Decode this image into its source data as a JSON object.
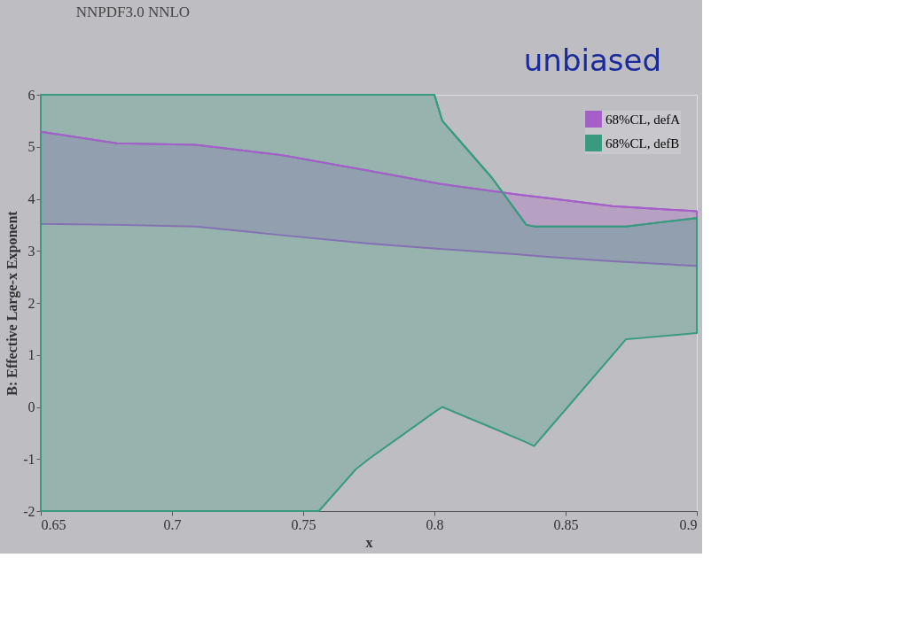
{
  "chart_data": {
    "type": "line",
    "title": "NNPDF3.0 NNLO",
    "xlabel": "x",
    "ylabel": "B: Effective Large-x Exponent",
    "annotations": [
      "unbiased"
    ],
    "series": [
      {
        "name": "68%CL, defA",
        "color": "#a45fc8",
        "x": [
          0.65,
          0.679,
          0.709,
          0.742,
          0.775,
          0.802,
          0.832,
          0.842,
          0.868,
          0.9
        ],
        "values": [
          5.29,
          5.07,
          5.04,
          4.84,
          4.54,
          4.29,
          4.08,
          4.02,
          3.86,
          3.76
        ],
        "upper": [
          5.29,
          5.07,
          5.04,
          4.84,
          4.54,
          4.29,
          4.08,
          4.02,
          3.86,
          3.76
        ],
        "lower": [
          3.52,
          3.5,
          3.47,
          3.3,
          3.14,
          3.04,
          2.93,
          2.89,
          2.8,
          2.71
        ]
      },
      {
        "name": "68%CL, defB",
        "color": "#3a9a80",
        "x": [
          0.65,
          0.756,
          0.77,
          0.775,
          0.8,
          0.803,
          0.822,
          0.835,
          0.838,
          0.845,
          0.873,
          0.9
        ],
        "values": [
          6,
          6,
          6,
          6,
          6,
          5.5,
          4.4,
          3.5,
          3.47,
          3.47,
          3.47,
          3.63
        ],
        "upper": [
          6,
          6,
          6,
          6,
          6,
          5.5,
          4.4,
          3.5,
          3.47,
          3.47,
          3.47,
          3.63
        ],
        "lower": [
          -2,
          -2,
          -1.2,
          -1.0,
          -0.1,
          0,
          -0.4,
          -0.68,
          -0.75,
          -0.34,
          1.3,
          1.42
        ]
      }
    ],
    "xlim": [
      0.65,
      0.9
    ],
    "xticks": [
      0.65,
      0.7,
      0.75,
      0.8,
      0.85,
      0.9
    ],
    "ylim": [
      -2,
      6
    ],
    "yticks": [
      -2,
      -1,
      0,
      1,
      2,
      3,
      4,
      5,
      6
    ],
    "grid": false,
    "legend": "top right"
  }
}
